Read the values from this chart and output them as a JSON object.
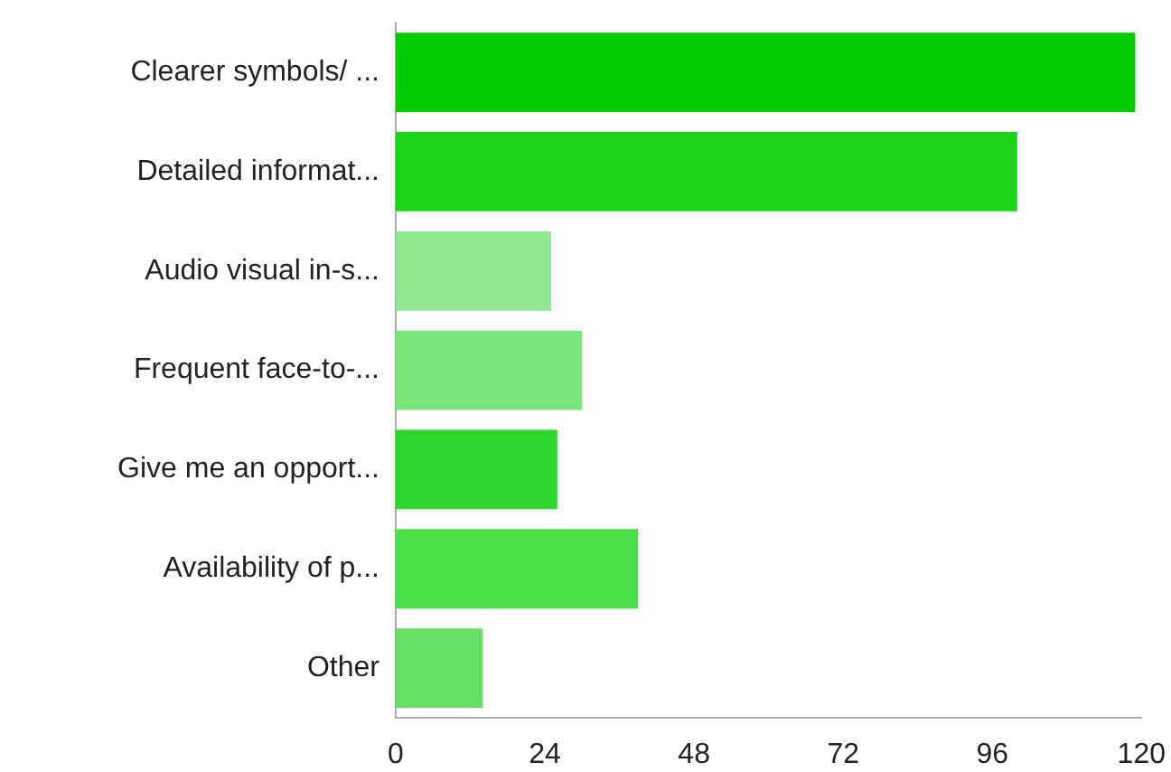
{
  "chart_data": {
    "type": "bar",
    "orientation": "horizontal",
    "categories": [
      "Clearer symbols/ ...",
      "Detailed informat...",
      "Audio visual in-s...",
      "Frequent face-to-...",
      "Give me an opport...",
      "Availability of p...",
      "Other"
    ],
    "values": [
      119,
      100,
      25,
      30,
      26,
      39,
      14
    ],
    "colors": [
      "#00cc00",
      "#1ad41a",
      "#8fe88f",
      "#7ae57a",
      "#2ed62e",
      "#48de48",
      "#63e063"
    ],
    "xlim": [
      0,
      120
    ],
    "xticks": [
      0,
      24,
      48,
      72,
      96,
      120
    ],
    "grid": false,
    "legend": false
  }
}
